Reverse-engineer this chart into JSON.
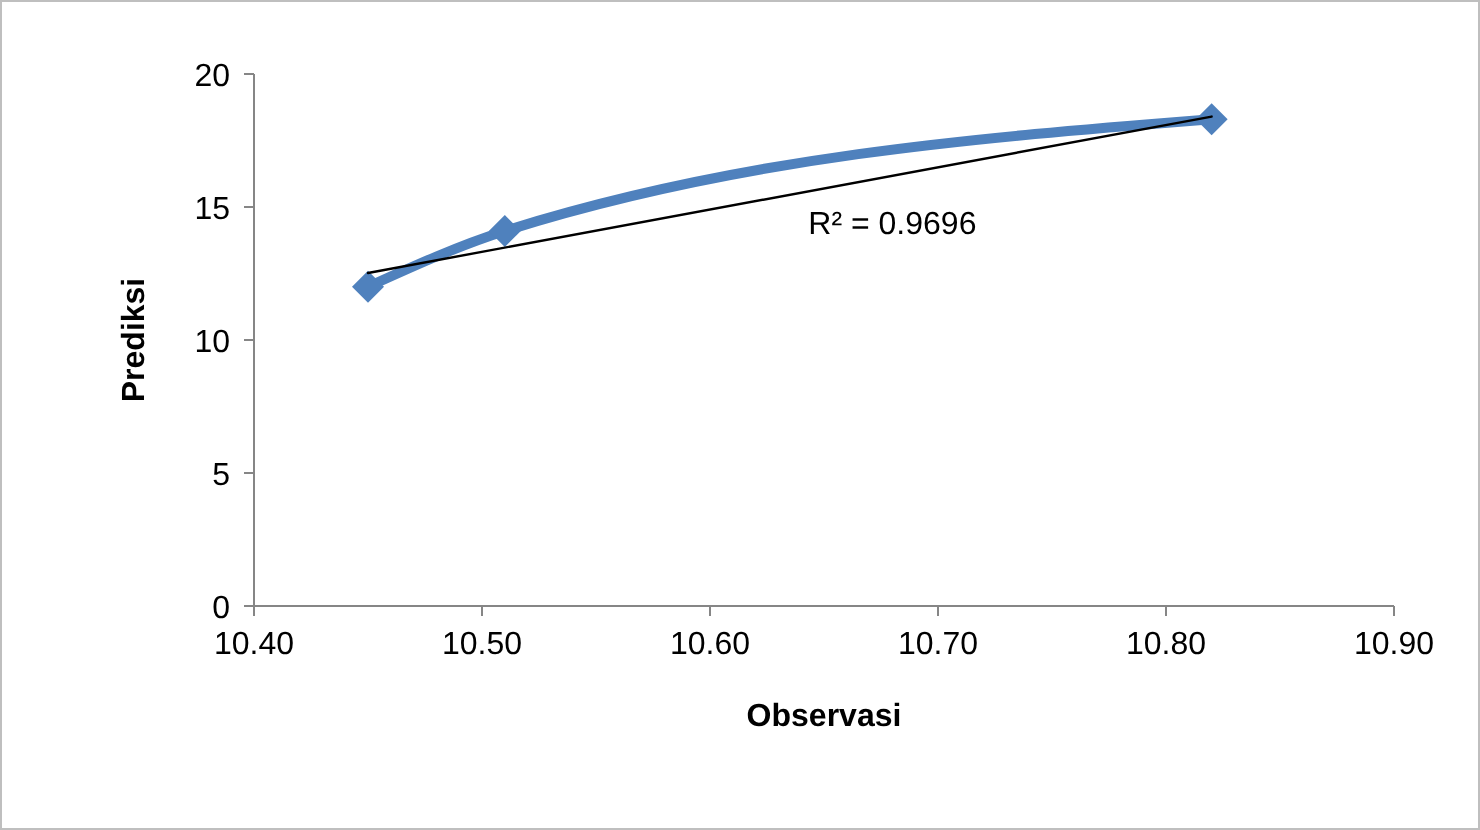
{
  "chart_data": {
    "type": "line",
    "xlabel": "Observasi",
    "ylabel": "Prediksi",
    "x": [
      10.45,
      10.51,
      10.82
    ],
    "series": [
      {
        "color": "#4f81bd",
        "values": [
          12.0,
          14.1,
          18.3
        ],
        "marker": "diamond"
      },
      {
        "type": "line",
        "color": "#000000",
        "x": [
          10.45,
          10.82
        ],
        "values": [
          12.52,
          18.4
        ],
        "marker": "none"
      }
    ],
    "xlim": [
      10.4,
      10.9
    ],
    "xticks": [
      {
        "value": 10.4,
        "label": "10.40"
      },
      {
        "value": 10.5,
        "label": "10.50"
      },
      {
        "value": 10.6,
        "label": "10.60"
      },
      {
        "value": 10.7,
        "label": "10.70"
      },
      {
        "value": 10.8,
        "label": "10.80"
      },
      {
        "value": 10.9,
        "label": "10.90"
      }
    ],
    "ylim": [
      0,
      20
    ],
    "yticks": [
      0,
      5,
      10,
      15,
      20
    ],
    "annotations": [
      "R² = 0.9696"
    ],
    "grid": false
  }
}
